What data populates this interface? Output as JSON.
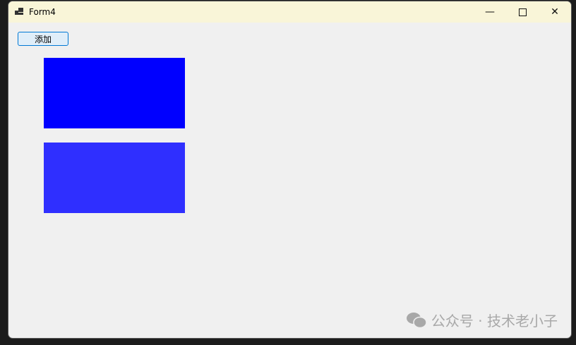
{
  "window": {
    "title": "Form4",
    "minimize_icon": "minimize-icon",
    "maximize_icon": "maximize-icon",
    "close_icon": "close-icon"
  },
  "form": {
    "add_button_label": "添加",
    "panels": [
      {
        "color": "#0000ff"
      },
      {
        "color": "#2f2fff"
      }
    ]
  },
  "watermark": {
    "text": "公众号 · 技术老小子",
    "icon": "wechat-icon"
  }
}
